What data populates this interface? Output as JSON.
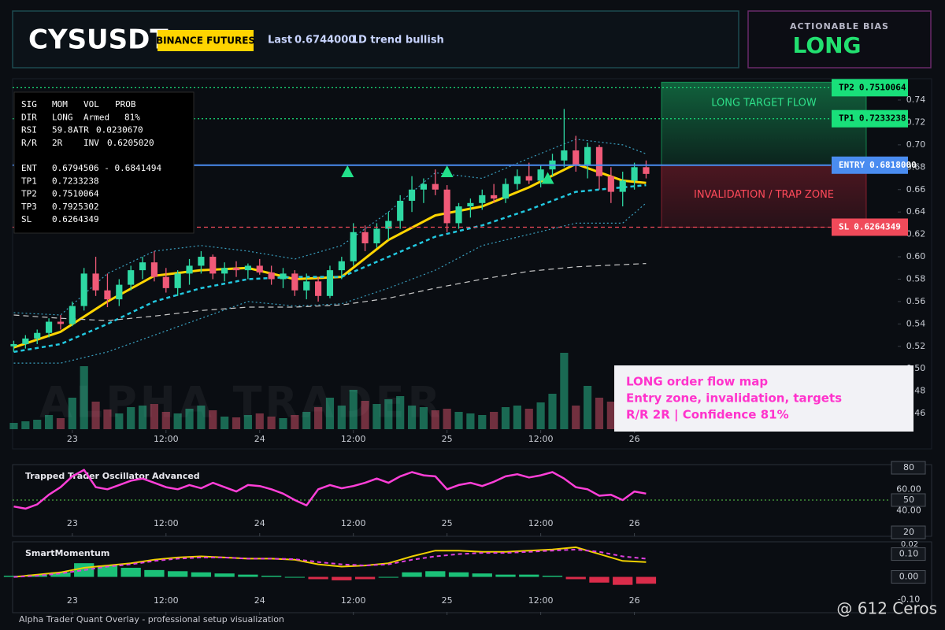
{
  "header": {
    "symbol": "CYSUSDT",
    "exchange": "BINANCE FUTURES",
    "last_label": "Last",
    "last": "0.6744000",
    "trend": "1D trend bullish"
  },
  "bias": {
    "title": "ACTIONABLE BIAS",
    "value": "LONG"
  },
  "info_panel": {
    "stats": [
      [
        "SIG",
        "MOM",
        "VOL",
        "PROB"
      ],
      [
        "DIR",
        "LONG",
        "Armed",
        "81%"
      ],
      [
        "RSI",
        "59.8",
        "ATR",
        "0.0230670"
      ],
      [
        "R/R",
        "2R",
        "INV",
        "0.6205020"
      ]
    ],
    "levels": [
      [
        "ENT",
        "0.6794506 - 0.6841494"
      ],
      [
        "TP1",
        "0.7233238"
      ],
      [
        "TP2",
        "0.7510064"
      ],
      [
        "TP3",
        "0.7925302"
      ],
      [
        "SL",
        "0.6264349"
      ]
    ]
  },
  "chart_data": [
    {
      "type": "candlestick",
      "x": [
        0,
        1,
        2,
        3,
        4,
        5,
        6,
        7,
        8,
        9,
        10,
        11,
        12,
        13,
        14,
        15,
        16,
        17,
        18,
        19,
        20,
        21,
        22,
        23,
        24,
        25,
        26,
        27,
        28,
        29,
        30,
        31,
        32,
        33,
        34,
        35,
        36,
        37,
        38,
        39,
        40,
        41,
        42,
        43,
        44,
        45,
        46,
        47,
        48,
        49,
        50,
        51,
        52,
        53,
        54
      ],
      "open": [
        0.52,
        0.522,
        0.527,
        0.532,
        0.542,
        0.54,
        0.556,
        0.585,
        0.57,
        0.562,
        0.575,
        0.588,
        0.595,
        0.582,
        0.572,
        0.585,
        0.592,
        0.6,
        0.585,
        0.59,
        0.588,
        0.592,
        0.586,
        0.58,
        0.585,
        0.57,
        0.578,
        0.565,
        0.588,
        0.596,
        0.622,
        0.612,
        0.625,
        0.632,
        0.65,
        0.66,
        0.665,
        0.66,
        0.63,
        0.645,
        0.648,
        0.655,
        0.652,
        0.665,
        0.672,
        0.668,
        0.678,
        0.686,
        0.695,
        0.682,
        0.698,
        0.672,
        0.658,
        0.668,
        0.68
      ],
      "high": [
        0.525,
        0.53,
        0.535,
        0.545,
        0.548,
        0.56,
        0.59,
        0.6,
        0.585,
        0.58,
        0.592,
        0.6,
        0.605,
        0.59,
        0.588,
        0.598,
        0.605,
        0.602,
        0.595,
        0.596,
        0.594,
        0.598,
        0.592,
        0.59,
        0.588,
        0.585,
        0.582,
        0.592,
        0.6,
        0.63,
        0.628,
        0.63,
        0.64,
        0.655,
        0.672,
        0.67,
        0.678,
        0.664,
        0.648,
        0.652,
        0.66,
        0.665,
        0.67,
        0.678,
        0.684,
        0.682,
        0.692,
        0.732,
        0.708,
        0.702,
        0.7,
        0.68,
        0.676,
        0.684,
        0.686
      ],
      "low": [
        0.515,
        0.518,
        0.522,
        0.528,
        0.535,
        0.538,
        0.552,
        0.565,
        0.555,
        0.556,
        0.57,
        0.58,
        0.578,
        0.568,
        0.565,
        0.575,
        0.585,
        0.58,
        0.578,
        0.582,
        0.58,
        0.584,
        0.575,
        0.572,
        0.565,
        0.562,
        0.56,
        0.563,
        0.58,
        0.592,
        0.605,
        0.608,
        0.615,
        0.625,
        0.64,
        0.648,
        0.655,
        0.622,
        0.625,
        0.635,
        0.642,
        0.648,
        0.648,
        0.66,
        0.665,
        0.662,
        0.672,
        0.68,
        0.676,
        0.67,
        0.66,
        0.648,
        0.645,
        0.66,
        0.67
      ],
      "close": [
        0.522,
        0.527,
        0.532,
        0.542,
        0.54,
        0.556,
        0.585,
        0.57,
        0.562,
        0.575,
        0.588,
        0.595,
        0.582,
        0.572,
        0.585,
        0.592,
        0.6,
        0.585,
        0.59,
        0.588,
        0.592,
        0.586,
        0.58,
        0.585,
        0.57,
        0.578,
        0.565,
        0.588,
        0.596,
        0.622,
        0.612,
        0.625,
        0.632,
        0.65,
        0.66,
        0.665,
        0.66,
        0.63,
        0.645,
        0.648,
        0.655,
        0.652,
        0.665,
        0.672,
        0.668,
        0.678,
        0.686,
        0.695,
        0.682,
        0.698,
        0.672,
        0.658,
        0.668,
        0.68,
        0.674
      ],
      "volume": [
        8,
        10,
        12,
        18,
        14,
        40,
        80,
        35,
        25,
        20,
        28,
        30,
        32,
        22,
        20,
        26,
        30,
        24,
        16,
        15,
        18,
        20,
        16,
        14,
        18,
        22,
        28,
        40,
        30,
        50,
        36,
        32,
        38,
        42,
        30,
        28,
        24,
        26,
        22,
        20,
        18,
        22,
        28,
        30,
        26,
        34,
        45,
        97,
        30,
        55,
        40,
        35,
        25,
        22,
        12
      ],
      "up_color": "#2ed9a3",
      "down_color": "#f05a78",
      "xlim": [
        -0.1,
        72.8
      ],
      "xticks": [
        {
          "value": 5,
          "label": "23"
        },
        {
          "value": 13,
          "label": "12:00"
        },
        {
          "value": 21,
          "label": "24"
        },
        {
          "value": 29,
          "label": "12:00"
        },
        {
          "value": 37,
          "label": "25"
        },
        {
          "value": 45,
          "label": "12:00"
        },
        {
          "value": 53,
          "label": "26"
        }
      ],
      "ylim": [
        0.446,
        0.759
      ],
      "yticks": [
        0.46,
        0.48,
        {
          "value": 0.5,
          "label": "0.50"
        },
        0.52,
        0.54,
        0.56,
        0.58,
        {
          "value": 0.6,
          "label": "0.60"
        },
        0.62,
        0.64,
        0.66,
        0.68,
        {
          "value": 0.7,
          "label": "0.70"
        },
        0.72,
        0.74
      ],
      "series": [
        {
          "color": "#ffd500",
          "style": "solid",
          "x": [
            0,
            4,
            8,
            12,
            16,
            20,
            24,
            28,
            32,
            36,
            40,
            44,
            48,
            52,
            54
          ],
          "values": [
            0.519,
            0.533,
            0.56,
            0.583,
            0.588,
            0.59,
            0.58,
            0.582,
            0.615,
            0.637,
            0.645,
            0.662,
            0.683,
            0.668,
            0.666
          ]
        },
        {
          "color": "#22c8e0",
          "style": "dashed",
          "x": [
            0,
            4,
            8,
            12,
            16,
            20,
            24,
            28,
            32,
            36,
            40,
            44,
            48,
            52,
            54
          ],
          "values": [
            0.515,
            0.522,
            0.54,
            0.56,
            0.572,
            0.58,
            0.582,
            0.582,
            0.6,
            0.618,
            0.628,
            0.642,
            0.658,
            0.662,
            0.664
          ]
        },
        {
          "color": "#3aa0c0",
          "style": "dotted",
          "x": [
            0,
            4,
            8,
            12,
            16,
            20,
            24,
            28,
            32,
            36,
            40,
            44,
            48,
            52,
            54
          ],
          "values": [
            0.55,
            0.548,
            0.585,
            0.605,
            0.61,
            0.605,
            0.598,
            0.61,
            0.64,
            0.675,
            0.67,
            0.688,
            0.705,
            0.7,
            0.692
          ]
        },
        {
          "color": "#3aa0c0",
          "style": "dotted",
          "x": [
            0,
            4,
            8,
            12,
            16,
            20,
            24,
            28,
            32,
            36,
            40,
            44,
            48,
            52,
            54
          ],
          "values": [
            0.505,
            0.505,
            0.515,
            0.53,
            0.545,
            0.56,
            0.556,
            0.558,
            0.572,
            0.588,
            0.61,
            0.62,
            0.63,
            0.63,
            0.648
          ]
        },
        {
          "color": "#c8c8c8",
          "style": "longdash",
          "x": [
            0,
            4,
            8,
            12,
            16,
            20,
            24,
            28,
            32,
            36,
            40,
            44,
            48,
            52,
            54
          ],
          "values": [
            0.548,
            0.545,
            0.543,
            0.547,
            0.552,
            0.555,
            0.555,
            0.557,
            0.563,
            0.572,
            0.58,
            0.587,
            0.591,
            0.593,
            0.594
          ]
        }
      ],
      "signals": {
        "color": "#22e08a",
        "x": [
          28.5,
          37,
          45.6
        ],
        "values": [
          0.676,
          0.676,
          0.67
        ]
      },
      "levels": [
        {
          "name": "TP2",
          "value": 0.7510064,
          "color": "#19e07a",
          "text_color": "#000000",
          "style": "dotted"
        },
        {
          "name": "TP1",
          "value": 0.7233238,
          "color": "#19e07a",
          "text_color": "#000000",
          "style": "dotted"
        },
        {
          "name": "ENTRY",
          "value": 0.6818,
          "label": "0.6818000",
          "color": "#4a8cf0",
          "text_color": "#ffffff",
          "style": "solid"
        },
        {
          "name": "SL",
          "value": 0.6264349,
          "color": "#f04a5a",
          "text_color": "#ffffff",
          "style": "dashed"
        }
      ],
      "zones": [
        {
          "label": "LONG TARGET FLOW",
          "color": "#19c870",
          "text_color": "#2ee08a"
        },
        {
          "label": "INVALIDATION / TRAP ZONE",
          "color": "#c8283c",
          "text_color": "#ff4a5a"
        }
      ],
      "watermark": "ALPHA TRADER",
      "annotations": [
        "LONG order flow map",
        "Entry zone, invalidation, targets",
        "R/R 2R | Confidence 81%"
      ]
    },
    {
      "type": "line",
      "title": "Trapped Trader Oscillator Advanced",
      "x": [
        0,
        1,
        2,
        3,
        4,
        5,
        6,
        7,
        8,
        9,
        10,
        11,
        12,
        13,
        14,
        15,
        16,
        17,
        18,
        19,
        20,
        21,
        22,
        23,
        24,
        25,
        26,
        27,
        28,
        29,
        30,
        31,
        32,
        33,
        34,
        35,
        36,
        37,
        38,
        39,
        40,
        41,
        42,
        43,
        44,
        45,
        46,
        47,
        48,
        49,
        50,
        51,
        52,
        53,
        54
      ],
      "series": [
        {
          "color": "#ff3fd8",
          "values": [
            44,
            42,
            46,
            55,
            62,
            72,
            78,
            62,
            60,
            64,
            68,
            70,
            66,
            62,
            60,
            64,
            61,
            66,
            62,
            58,
            64,
            63,
            60,
            56,
            50,
            45,
            60,
            64,
            61,
            63,
            66,
            70,
            66,
            72,
            76,
            73,
            72,
            60,
            64,
            66,
            63,
            67,
            72,
            74,
            71,
            73,
            76,
            70,
            62,
            60,
            54,
            55,
            50,
            58,
            56
          ]
        }
      ],
      "reference": 50,
      "reference_color": "#5ad04a",
      "xlim": [
        -0.1,
        72.8
      ],
      "xticks": [
        {
          "value": 5,
          "label": "23"
        },
        {
          "value": 13,
          "label": "12:00"
        },
        {
          "value": 21,
          "label": "24"
        },
        {
          "value": 29,
          "label": "12:00"
        },
        {
          "value": 37,
          "label": "25"
        },
        {
          "value": 45,
          "label": "12:00"
        },
        {
          "value": 53,
          "label": "26"
        }
      ],
      "ylim": [
        20,
        80
      ],
      "yticks": [
        20,
        {
          "value": 40,
          "label": "40.00"
        },
        50,
        {
          "value": 60,
          "label": "60.00"
        },
        80
      ]
    },
    {
      "type": "momentum",
      "title": "SmartMomentum",
      "x": [
        0,
        2,
        4,
        6,
        8,
        10,
        12,
        14,
        16,
        18,
        20,
        22,
        24,
        26,
        28,
        30,
        32,
        34,
        36,
        38,
        40,
        42,
        44,
        46,
        48,
        50,
        52,
        54
      ],
      "series": [
        {
          "color": "#f0d000",
          "style": "solid",
          "values": [
            0.0,
            0.01,
            0.02,
            0.04,
            0.05,
            0.06,
            0.075,
            0.085,
            0.09,
            0.085,
            0.08,
            0.08,
            0.075,
            0.055,
            0.045,
            0.05,
            0.06,
            0.09,
            0.115,
            0.115,
            0.11,
            0.11,
            0.115,
            0.12,
            0.13,
            0.1,
            0.07,
            0.065
          ]
        },
        {
          "color": "#e040e0",
          "style": "dashed",
          "values": [
            0.0,
            0.005,
            0.015,
            0.03,
            0.045,
            0.055,
            0.07,
            0.08,
            0.085,
            0.085,
            0.08,
            0.08,
            0.078,
            0.065,
            0.055,
            0.05,
            0.055,
            0.075,
            0.09,
            0.1,
            0.105,
            0.105,
            0.11,
            0.115,
            0.12,
            0.11,
            0.09,
            0.08
          ]
        }
      ],
      "histogram": {
        "pos_color": "#1fe08a",
        "neg_color": "#ff3355",
        "values": [
          0.005,
          0.01,
          0.02,
          0.06,
          0.05,
          0.04,
          0.03,
          0.025,
          0.02,
          0.015,
          0.01,
          0.005,
          0.0,
          -0.01,
          -0.015,
          -0.01,
          0.0,
          0.02,
          0.025,
          0.02,
          0.015,
          0.01,
          0.01,
          0.005,
          -0.01,
          -0.025,
          -0.035,
          -0.03
        ]
      },
      "xlim": [
        -0.1,
        72.8
      ],
      "xticks": [
        {
          "value": 5,
          "label": "23"
        },
        {
          "value": 13,
          "label": "12:00"
        },
        {
          "value": 21,
          "label": "24"
        },
        {
          "value": 29,
          "label": "12:00"
        },
        {
          "value": 37,
          "label": "25"
        },
        {
          "value": 45,
          "label": "12:00"
        },
        {
          "value": 53,
          "label": "26"
        }
      ],
      "ylim": [
        -0.15,
        0.14
      ],
      "yticks": [
        {
          "value": -0.1,
          "label": "-0.10"
        },
        {
          "value": 0,
          "label": "0.00"
        },
        {
          "value": 0.1,
          "label": "0.10"
        }
      ],
      "top_label": "0.02"
    }
  ],
  "footer": "Alpha Trader Quant Overlay - professional setup visualization",
  "credit": "@ 612 Ceros"
}
